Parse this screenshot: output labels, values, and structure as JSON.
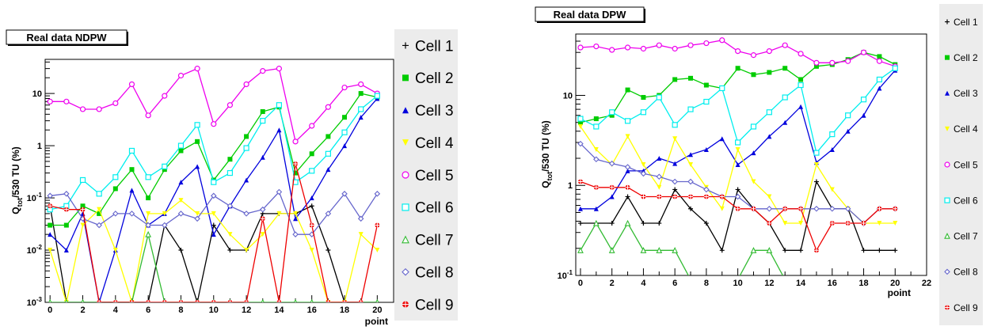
{
  "chart_data": [
    {
      "type": "line",
      "title": "Real data NDPW",
      "xlabel": "point",
      "ylabel_main": "Q",
      "ylabel_sub": "tot",
      "ylabel_rest": "/530 TU (%)",
      "yscale": "log",
      "xlim": [
        -0.3,
        21
      ],
      "ylim": [
        0.001,
        45
      ],
      "x_ticks": [
        0,
        2,
        4,
        6,
        8,
        10,
        12,
        14,
        16,
        18,
        20
      ],
      "y_ticks": [
        {
          "base": "10",
          "exp": "-3",
          "value": 0.001
        },
        {
          "base": "10",
          "exp": "-2",
          "value": 0.01
        },
        {
          "base": "10",
          "exp": "-1",
          "value": 0.1
        },
        {
          "base": "1",
          "exp": "",
          "value": 1
        },
        {
          "base": "10",
          "exp": "",
          "value": 10
        }
      ],
      "x": [
        0,
        1,
        2,
        3,
        4,
        5,
        6,
        7,
        8,
        9,
        10,
        11,
        12,
        13,
        14,
        15,
        16,
        17,
        18,
        19,
        20
      ],
      "series": [
        {
          "name": "Cell 1",
          "color": "#000000",
          "marker": "plus",
          "values": [
            0.07,
            0.001,
            0.001,
            0.001,
            0.001,
            0.001,
            0.001,
            0.03,
            0.01,
            0.001,
            0.03,
            0.01,
            0.01,
            0.05,
            0.05,
            0.05,
            0.07,
            0.01,
            0.001,
            0.001,
            0.001
          ]
        },
        {
          "name": "Cell 2",
          "color": "#00cc00",
          "marker": "square",
          "values": [
            0.03,
            0.03,
            0.07,
            0.05,
            0.15,
            0.35,
            0.1,
            0.35,
            0.8,
            1.2,
            0.22,
            0.55,
            1.5,
            4.5,
            5.5,
            0.3,
            0.7,
            1.5,
            3.5,
            10,
            8.5
          ]
        },
        {
          "name": "Cell 3",
          "color": "#0000dd",
          "marker": "triangle",
          "values": [
            0.02,
            0.01,
            0.05,
            0.001,
            0.01,
            0.14,
            0.03,
            0.05,
            0.2,
            0.4,
            0.02,
            0.07,
            0.22,
            0.6,
            2.0,
            0.04,
            0.1,
            0.35,
            1.0,
            3.5,
            8.0
          ]
        },
        {
          "name": "Cell 4",
          "color": "#ffff00",
          "marker": "triangle-down",
          "values": [
            0.01,
            0.001,
            0.03,
            0.06,
            0.01,
            0.001,
            0.05,
            0.05,
            0.09,
            0.05,
            0.05,
            0.02,
            0.01,
            0.02,
            0.05,
            0.05,
            0.01,
            0.001,
            0.001,
            0.02,
            0.01
          ]
        },
        {
          "name": "Cell 5",
          "color": "#ee00ee",
          "marker": "circle",
          "values": [
            7.0,
            7.0,
            5.0,
            5.0,
            6.5,
            15,
            3.8,
            9.0,
            22,
            30,
            2.6,
            6.0,
            15,
            27,
            30,
            1.2,
            2.4,
            5.5,
            13,
            15,
            10
          ]
        },
        {
          "name": "Cell 6",
          "color": "#00eeee",
          "marker": "square",
          "values": [
            0.06,
            0.07,
            0.22,
            0.12,
            0.25,
            0.8,
            0.25,
            0.4,
            1.0,
            2.5,
            0.2,
            0.3,
            0.9,
            3.0,
            6.0,
            0.2,
            0.33,
            0.7,
            1.8,
            5.0,
            9.0
          ]
        },
        {
          "name": "Cell 7",
          "color": "#33bb33",
          "marker": "triangle-open",
          "values": [
            0.001,
            0.001,
            0.001,
            0.001,
            0.001,
            0.001,
            0.02,
            0.001,
            0.001,
            0.001,
            0.001,
            0.001,
            0.001,
            0.001,
            0.001,
            0.001,
            0.001,
            0.001,
            0.001,
            0.001,
            0.001
          ]
        },
        {
          "name": "Cell 8",
          "color": "#6666cc",
          "marker": "diamond",
          "values": [
            0.11,
            0.12,
            0.04,
            0.03,
            0.05,
            0.05,
            0.03,
            0.03,
            0.05,
            0.04,
            0.11,
            0.07,
            0.05,
            0.06,
            0.13,
            0.02,
            0.02,
            0.05,
            0.12,
            0.04,
            0.12
          ]
        },
        {
          "name": "Cell 9",
          "color": "#ee0000",
          "marker": "crosshair",
          "values": [
            0.07,
            0.06,
            0.06,
            0.001,
            0.001,
            0.001,
            0.001,
            0.001,
            0.001,
            0.001,
            0.001,
            0.001,
            0.001,
            0.04,
            0.001,
            0.45,
            0.03,
            0.001,
            0.001,
            0.001,
            0.03
          ]
        }
      ]
    },
    {
      "type": "line",
      "title": "Real data DPW",
      "xlabel": "point",
      "ylabel_main": "Q",
      "ylabel_sub": "tot",
      "ylabel_rest": "/530 TU (%)",
      "yscale": "log",
      "xlim": [
        -0.3,
        22
      ],
      "ylim": [
        0.1,
        48
      ],
      "x_ticks": [
        0,
        2,
        4,
        6,
        8,
        10,
        12,
        14,
        16,
        18,
        20,
        22
      ],
      "y_ticks": [
        {
          "base": "10",
          "exp": "-1",
          "value": 0.1
        },
        {
          "base": "1",
          "exp": "",
          "value": 1
        },
        {
          "base": "10",
          "exp": "",
          "value": 10
        }
      ],
      "x": [
        0,
        1,
        2,
        3,
        4,
        5,
        6,
        7,
        8,
        9,
        10,
        11,
        12,
        13,
        14,
        15,
        16,
        17,
        18,
        19,
        20
      ],
      "series": [
        {
          "name": "Cell 1",
          "color": "#000000",
          "marker": "plus",
          "values": [
            0.38,
            0.38,
            0.38,
            0.75,
            0.38,
            0.38,
            0.9,
            0.55,
            0.38,
            0.19,
            0.9,
            0.55,
            0.38,
            0.19,
            0.19,
            1.1,
            0.55,
            0.55,
            0.19,
            0.19,
            0.19
          ]
        },
        {
          "name": "Cell 2",
          "color": "#00cc00",
          "marker": "square",
          "values": [
            5.0,
            5.5,
            6.0,
            11.5,
            9.5,
            10,
            15,
            15.5,
            13,
            12,
            20,
            17,
            18,
            20,
            15,
            21,
            22,
            25,
            30,
            27,
            22
          ]
        },
        {
          "name": "Cell 3",
          "color": "#0000dd",
          "marker": "triangle",
          "values": [
            0.55,
            0.55,
            0.75,
            1.45,
            1.45,
            2.0,
            1.75,
            2.2,
            2.5,
            3.3,
            1.7,
            2.3,
            3.5,
            5.0,
            7.5,
            1.8,
            2.5,
            4.0,
            6.0,
            12,
            19
          ]
        },
        {
          "name": "Cell 4",
          "color": "#ffff00",
          "marker": "triangle-down",
          "values": [
            4.5,
            2.5,
            1.7,
            3.5,
            1.7,
            0.95,
            3.3,
            1.7,
            0.95,
            0.55,
            2.5,
            1.1,
            0.75,
            0.38,
            0.38,
            1.7,
            0.9,
            0.55,
            0.38,
            0.38,
            0.38
          ]
        },
        {
          "name": "Cell 5",
          "color": "#ee00ee",
          "marker": "circle",
          "values": [
            34,
            35,
            32,
            34,
            33,
            36,
            33,
            36,
            38,
            41,
            31,
            28,
            31,
            36,
            29,
            23,
            23,
            24,
            30,
            24,
            21
          ]
        },
        {
          "name": "Cell 6",
          "color": "#00eeee",
          "marker": "square",
          "values": [
            5.5,
            4.5,
            6.5,
            5.2,
            6.5,
            9.5,
            4.7,
            7.0,
            8.5,
            12,
            3.0,
            4.5,
            6.5,
            9.5,
            13,
            2.3,
            3.7,
            6.0,
            9.0,
            15,
            20
          ]
        },
        {
          "name": "Cell 7",
          "color": "#33bb33",
          "marker": "triangle-open",
          "values": [
            0.19,
            0.38,
            0.19,
            0.38,
            0.19,
            0.19,
            0.19,
            0.09,
            0.09,
            0.09,
            0.09,
            0.19,
            0.19,
            0.09,
            0.09,
            0.09,
            0.09,
            0.09,
            0.09,
            0.09,
            0.09
          ]
        },
        {
          "name": "Cell 8",
          "color": "#6666cc",
          "marker": "diamond",
          "values": [
            2.9,
            1.95,
            1.75,
            1.6,
            1.35,
            1.25,
            1.1,
            1.1,
            0.9,
            0.75,
            0.75,
            0.55,
            0.55,
            0.55,
            0.55,
            0.55,
            0.55,
            0.55,
            0.38,
            0.55,
            0.55
          ]
        },
        {
          "name": "Cell 9",
          "color": "#ee0000",
          "marker": "crosshair",
          "values": [
            1.1,
            0.95,
            0.95,
            0.95,
            0.75,
            0.75,
            0.75,
            0.75,
            0.75,
            0.75,
            0.55,
            0.55,
            0.38,
            0.55,
            0.55,
            0.19,
            0.38,
            0.38,
            0.38,
            0.55,
            0.55
          ]
        }
      ]
    }
  ]
}
